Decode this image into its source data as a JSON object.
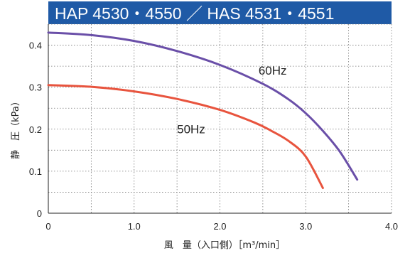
{
  "chart_data": {
    "type": "line",
    "title": "HAP 4530・4550 ／ HAS 4531・4551",
    "xlabel": "風　量（入口側）［m³/min］",
    "ylabel": "静　圧（kPa）",
    "xlim": [
      0,
      4.0
    ],
    "ylim": [
      0,
      0.45
    ],
    "x_ticks": [
      "0",
      "1.0",
      "2.0",
      "3.0",
      "4.0"
    ],
    "y_ticks": [
      "0",
      "0.1",
      "0.2",
      "0.3",
      "0.4"
    ],
    "grid": true,
    "series": [
      {
        "name": "60Hz",
        "color": "#6a4fa8",
        "x": [
          0,
          0.5,
          1.0,
          1.5,
          2.0,
          2.5,
          2.8,
          3.0,
          3.2,
          3.4,
          3.6
        ],
        "y": [
          0.43,
          0.424,
          0.41,
          0.386,
          0.353,
          0.308,
          0.271,
          0.238,
          0.196,
          0.146,
          0.08
        ]
      },
      {
        "name": "50Hz",
        "color": "#e8543e",
        "x": [
          0,
          0.5,
          1.0,
          1.5,
          2.0,
          2.4,
          2.6,
          2.8,
          3.0,
          3.2
        ],
        "y": [
          0.305,
          0.301,
          0.29,
          0.272,
          0.246,
          0.216,
          0.196,
          0.172,
          0.135,
          0.06
        ]
      }
    ]
  }
}
